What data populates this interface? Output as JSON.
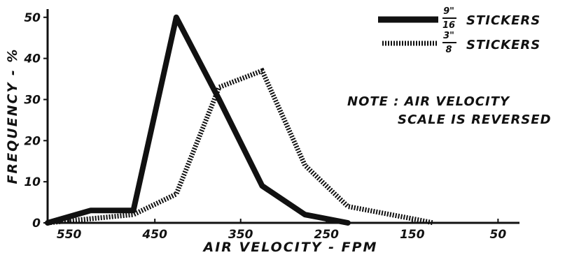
{
  "chart_data": {
    "type": "line",
    "title": "",
    "xlabel": "AIR VELOCITY - FPM",
    "ylabel": "FREQUENCY - %",
    "x_reversed": true,
    "xlim": [
      575,
      25
    ],
    "ylim": [
      0,
      52
    ],
    "x_ticks": [
      550,
      450,
      350,
      250,
      150,
      50
    ],
    "y_ticks": [
      0,
      10,
      20,
      30,
      40,
      50
    ],
    "grid": false,
    "legend_position": "top-right",
    "series": [
      {
        "name": "STICKERS",
        "fraction_num": "9\"",
        "fraction_den": "16",
        "style": "solid",
        "points": [
          [
            575,
            0
          ],
          [
            525,
            3
          ],
          [
            475,
            3
          ],
          [
            425,
            50
          ],
          [
            375,
            30
          ],
          [
            325,
            9
          ],
          [
            275,
            2
          ],
          [
            225,
            0
          ]
        ]
      },
      {
        "name": "STICKERS",
        "fraction_num": "3\"",
        "fraction_den": "8",
        "style": "dotted",
        "points": [
          [
            575,
            0
          ],
          [
            525,
            1
          ],
          [
            475,
            2
          ],
          [
            425,
            7
          ],
          [
            375,
            33
          ],
          [
            325,
            37
          ],
          [
            275,
            14
          ],
          [
            225,
            4
          ],
          [
            175,
            2
          ],
          [
            125,
            0
          ]
        ]
      }
    ],
    "annotation": [
      "NOTE : AIR VELOCITY",
      "SCALE IS REVERSED"
    ]
  }
}
